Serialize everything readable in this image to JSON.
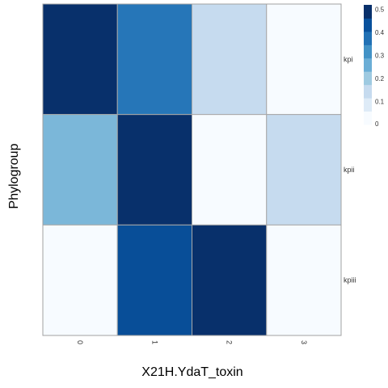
{
  "chart_data": {
    "type": "heatmap",
    "xlabel": "X21H.YdaT_toxin",
    "ylabel": "Phylogroup",
    "x_categories": [
      "0",
      "1",
      "2",
      "3"
    ],
    "y_categories": [
      "kpi",
      "kpii",
      "kpiii"
    ],
    "values": [
      [
        0.52,
        0.38,
        0.13,
        0.0
      ],
      [
        0.24,
        0.52,
        0.0,
        0.13
      ],
      [
        0.0,
        0.46,
        0.52,
        0.0
      ]
    ],
    "legend": {
      "ticks": [
        "0.5",
        "0.4",
        "0.3",
        "0.2",
        "0.1",
        "0"
      ],
      "tick_values": [
        0.5,
        0.4,
        0.3,
        0.2,
        0.1,
        0
      ],
      "colors": [
        "#f7fbff",
        "#deebf7",
        "#c6dbef",
        "#9ecae1",
        "#6baed6",
        "#4292c6",
        "#2171b5",
        "#08519c",
        "#08306b"
      ],
      "placement": "right"
    },
    "palette": [
      "#f7fbff",
      "#deebf7",
      "#c6dbef",
      "#9ecae1",
      "#6baed6",
      "#4292c6",
      "#2171b5",
      "#08519c",
      "#08306b"
    ],
    "value_range": [
      0,
      0.52
    ],
    "grid": false
  }
}
